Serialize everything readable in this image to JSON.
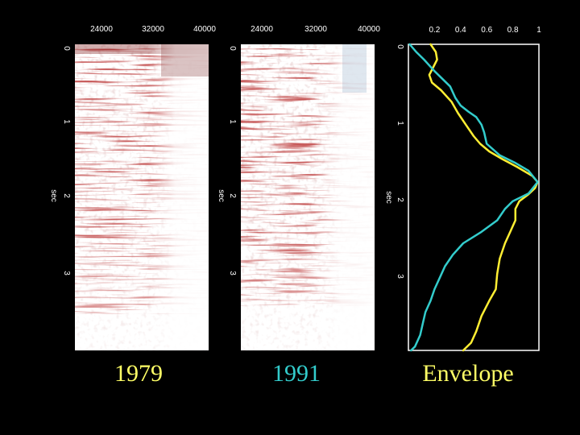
{
  "slide": {
    "background": "#000000"
  },
  "panels": [
    {
      "caption": "1979",
      "caption_color": "#ffff66",
      "x_ticks": [
        "24000",
        "32000",
        "40000"
      ],
      "y_ticks": [
        "0",
        "1",
        "2",
        "3"
      ],
      "y_label": "sec",
      "image_description_color": "#8b1a1a"
    },
    {
      "caption": "1991",
      "caption_color": "#33cccc",
      "x_ticks": [
        "24000",
        "32000",
        "40000"
      ],
      "y_ticks": [
        "0",
        "1",
        "2",
        "3"
      ],
      "y_label": "sec",
      "image_description_color": "#8b1a1a"
    }
  ],
  "chart_data": {
    "type": "line",
    "title": "Envelope",
    "caption_color": "#ffff66",
    "xlabel": "",
    "ylabel": "sec",
    "xlim": [
      0,
      1
    ],
    "ylim": [
      0,
      4
    ],
    "y_inverted": true,
    "x_ticks": [
      "0.2",
      "0.4",
      "0.6",
      "0.8",
      "1"
    ],
    "y_ticks": [
      "0",
      "1",
      "2",
      "3"
    ],
    "grid": false,
    "series": [
      {
        "color": "#ffee33",
        "points": [
          [
            0.17,
            0.0
          ],
          [
            0.21,
            0.1
          ],
          [
            0.22,
            0.2
          ],
          [
            0.19,
            0.3
          ],
          [
            0.16,
            0.4
          ],
          [
            0.18,
            0.5
          ],
          [
            0.25,
            0.6
          ],
          [
            0.33,
            0.75
          ],
          [
            0.38,
            0.9
          ],
          [
            0.44,
            1.05
          ],
          [
            0.5,
            1.2
          ],
          [
            0.55,
            1.3
          ],
          [
            0.62,
            1.4
          ],
          [
            0.72,
            1.5
          ],
          [
            0.83,
            1.6
          ],
          [
            0.95,
            1.72
          ],
          [
            0.99,
            1.8
          ],
          [
            0.97,
            1.88
          ],
          [
            0.92,
            1.96
          ],
          [
            0.85,
            2.05
          ],
          [
            0.82,
            2.15
          ],
          [
            0.82,
            2.3
          ],
          [
            0.78,
            2.45
          ],
          [
            0.74,
            2.6
          ],
          [
            0.7,
            2.8
          ],
          [
            0.68,
            3.0
          ],
          [
            0.67,
            3.2
          ],
          [
            0.62,
            3.35
          ],
          [
            0.56,
            3.55
          ],
          [
            0.52,
            3.75
          ],
          [
            0.48,
            3.9
          ],
          [
            0.42,
            4.0
          ]
        ]
      },
      {
        "color": "#33cccc",
        "points": [
          [
            0.01,
            0.0
          ],
          [
            0.06,
            0.1
          ],
          [
            0.12,
            0.2
          ],
          [
            0.2,
            0.35
          ],
          [
            0.26,
            0.45
          ],
          [
            0.32,
            0.55
          ],
          [
            0.36,
            0.7
          ],
          [
            0.4,
            0.8
          ],
          [
            0.46,
            0.88
          ],
          [
            0.52,
            0.95
          ],
          [
            0.56,
            1.05
          ],
          [
            0.58,
            1.15
          ],
          [
            0.6,
            1.3
          ],
          [
            0.7,
            1.45
          ],
          [
            0.82,
            1.55
          ],
          [
            0.92,
            1.65
          ],
          [
            0.99,
            1.8
          ],
          [
            0.92,
            1.95
          ],
          [
            0.8,
            2.05
          ],
          [
            0.74,
            2.15
          ],
          [
            0.68,
            2.3
          ],
          [
            0.56,
            2.45
          ],
          [
            0.42,
            2.6
          ],
          [
            0.34,
            2.75
          ],
          [
            0.28,
            2.9
          ],
          [
            0.24,
            3.05
          ],
          [
            0.2,
            3.2
          ],
          [
            0.17,
            3.35
          ],
          [
            0.13,
            3.5
          ],
          [
            0.11,
            3.65
          ],
          [
            0.09,
            3.8
          ],
          [
            0.05,
            3.95
          ],
          [
            0.02,
            4.0
          ]
        ]
      }
    ]
  }
}
